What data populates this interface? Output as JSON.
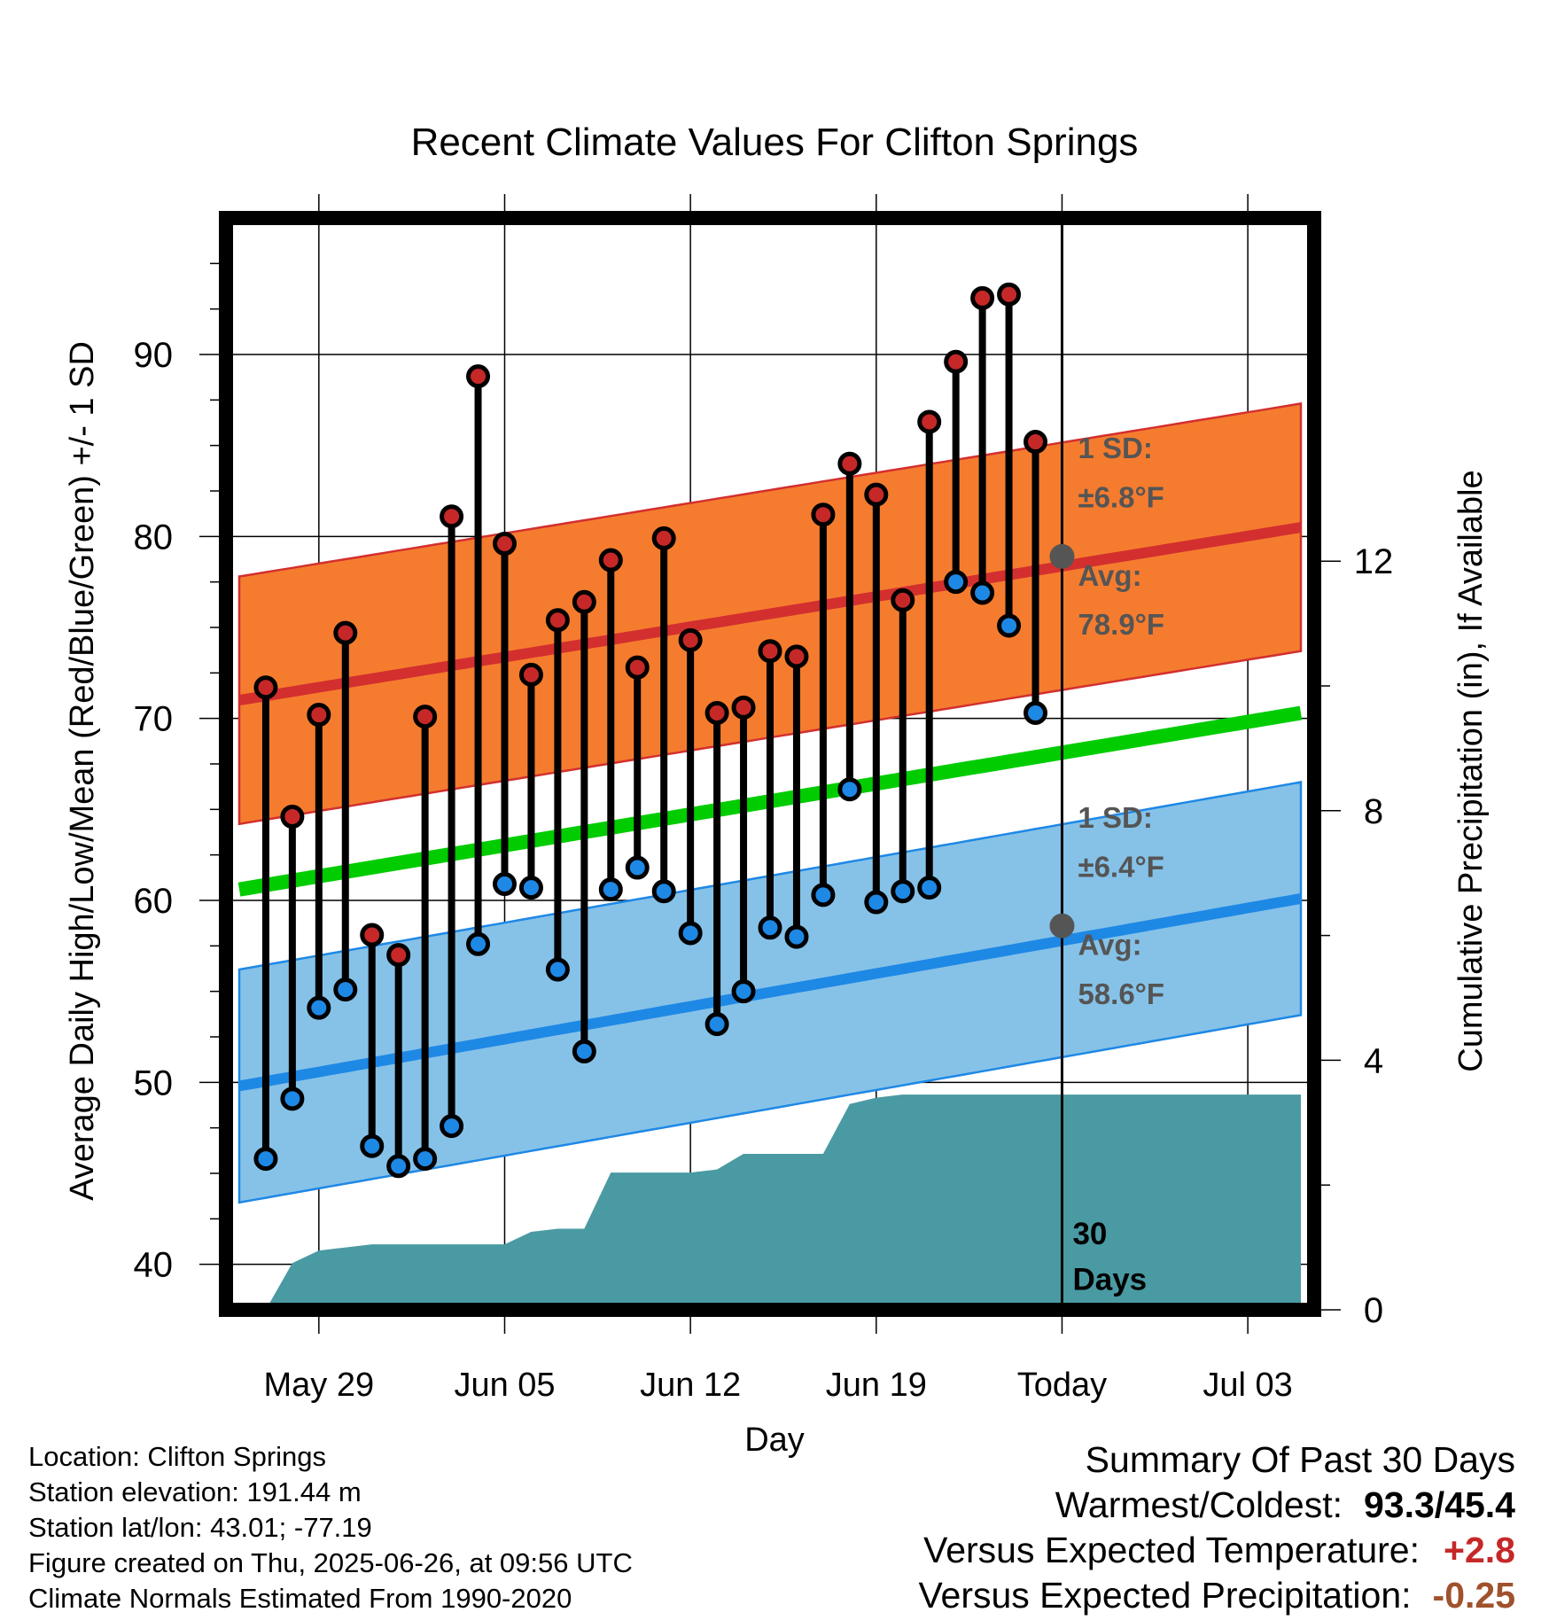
{
  "chart_data": {
    "type": "line",
    "title": "Recent Climate Values For Clifton Springs",
    "xlabel": "Day",
    "ylabel": "Average Daily High/Low/Mean (Red/Blue/Green) +/- 1 SD",
    "y2label": "Cumulative Precipitation (in), If Available",
    "x_tick_labels": [
      "May 29",
      "Jun 05",
      "Jun 12",
      "Jun 19",
      "Today",
      "Jul 03"
    ],
    "x_tick_days": [
      -28,
      -21,
      -14,
      -7,
      0,
      7
    ],
    "xlim": [
      -31.5,
      9.5
    ],
    "ylim": [
      37.5,
      97.5
    ],
    "y_ticks": [
      40,
      50,
      60,
      70,
      80,
      90
    ],
    "y2lim": [
      0,
      17.5
    ],
    "y2_ticks": [
      0,
      4,
      8,
      12
    ],
    "grid": true,
    "today_line_day": 0,
    "days": [
      -30,
      -29,
      -28,
      -27,
      -26,
      -25,
      -24,
      -23,
      -22,
      -21,
      -20,
      -19,
      -18,
      -17,
      -16,
      -15,
      -14,
      -13,
      -12,
      -11,
      -10,
      -9,
      -8,
      -7,
      -6,
      -5,
      -4,
      -3,
      -2,
      -1
    ],
    "series": [
      {
        "name": "High",
        "color": "#c62828",
        "values": [
          71.7,
          64.6,
          70.2,
          74.7,
          58.1,
          57.0,
          70.1,
          81.1,
          88.8,
          79.6,
          72.4,
          75.4,
          76.4,
          78.7,
          72.8,
          79.9,
          74.3,
          70.3,
          70.6,
          73.7,
          73.4,
          81.2,
          84.0,
          82.3,
          76.5,
          86.3,
          89.6,
          93.1,
          93.3,
          85.2
        ]
      },
      {
        "name": "Low",
        "color": "#1e88e5",
        "values": [
          45.8,
          49.1,
          54.1,
          55.1,
          46.5,
          45.4,
          45.8,
          47.6,
          57.6,
          60.9,
          60.7,
          56.2,
          51.7,
          60.6,
          61.8,
          60.5,
          58.2,
          53.2,
          55.0,
          58.5,
          58.0,
          60.3,
          66.1,
          59.9,
          60.5,
          60.7,
          77.5,
          76.9,
          75.1,
          70.3
        ]
      }
    ],
    "normals": {
      "day_range": [
        -31,
        9
      ],
      "avg_high": [
        71.0,
        80.5
      ],
      "high_sd": 6.8,
      "avg_low": [
        49.8,
        60.1
      ],
      "low_sd": 6.4,
      "avg_mean": [
        60.6,
        70.3
      ],
      "high_color": "#d32f2f",
      "high_band_color": "#f57c2e",
      "low_color": "#1e88e5",
      "low_band_color": "#86c2e8",
      "mean_color": "#00cc00"
    },
    "precip": {
      "color": "#4a9aa3",
      "days": [
        -30,
        -29,
        -28,
        -27,
        -26,
        -25,
        -24,
        -23,
        -22,
        -21,
        -20,
        -19,
        -18,
        -17,
        -16,
        -15,
        -14,
        -13,
        -12,
        -11,
        -10,
        -9,
        -8,
        -7,
        -6,
        -5,
        -4,
        -3,
        -2,
        -1,
        0,
        9
      ],
      "values": [
        0.0,
        0.75,
        0.95,
        1.0,
        1.05,
        1.05,
        1.05,
        1.05,
        1.05,
        1.05,
        1.25,
        1.3,
        1.3,
        2.2,
        2.2,
        2.2,
        2.2,
        2.25,
        2.5,
        2.5,
        2.5,
        2.5,
        3.3,
        3.4,
        3.45,
        3.45,
        3.45,
        3.45,
        3.45,
        3.45,
        3.45,
        3.45
      ]
    },
    "annotations": {
      "high_sd_label": "1 SD:",
      "high_sd_value": "±6.8°F",
      "high_avg_label": "Avg:",
      "high_avg_value": "78.9°F",
      "low_sd_label": "1 SD:",
      "low_sd_value": "±6.4°F",
      "low_avg_label": "Avg:",
      "low_avg_value": "58.6°F",
      "today_avg_high": 78.9,
      "today_avg_low": 58.6,
      "window_count": "30",
      "window_unit": "Days"
    }
  },
  "info": {
    "location": "Location: Clifton Springs",
    "elevation": "Station elevation: 191.44 m",
    "latlon": "Station lat/lon: 43.01; -77.19",
    "created": "Figure created on Thu, 2025-06-26, at 09:56 UTC",
    "normals": "Climate Normals Estimated From 1990-2020"
  },
  "summary": {
    "title": "Summary Of Past 30 Days",
    "warm_label": "Warmest/Coldest:",
    "warm_value": "93.3/45.4",
    "temp_label": "Versus Expected Temperature:",
    "temp_value": "+2.8",
    "prcp_label": "Versus Expected Precipitation:",
    "prcp_value": "-0.25"
  }
}
